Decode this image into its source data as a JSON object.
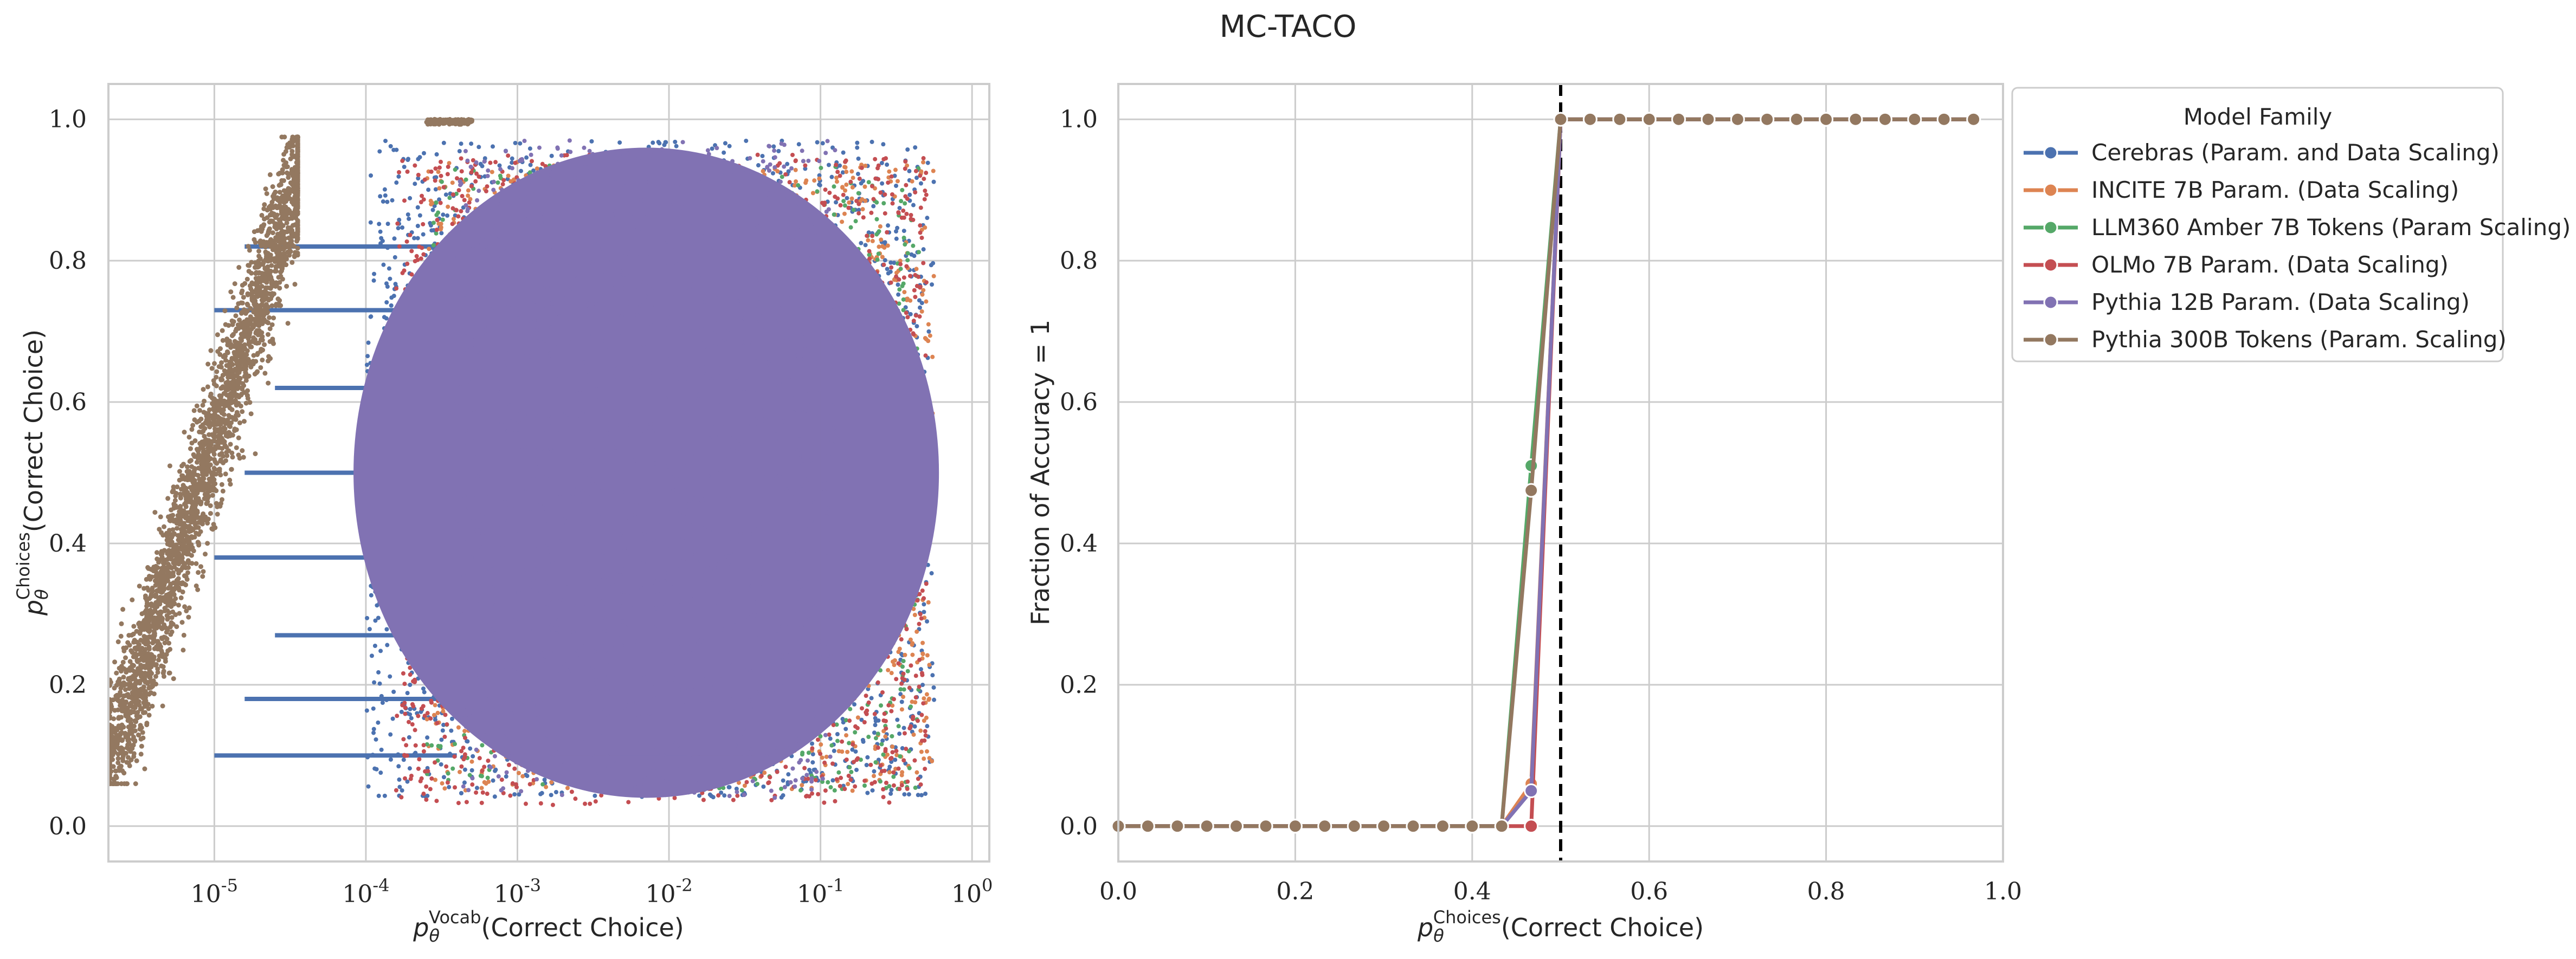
{
  "figure": {
    "title": "MC-TACO"
  },
  "chart_data": [
    {
      "type": "scatter",
      "xlabel_prefix": "p",
      "xlabel_sub": "θ",
      "xlabel_sup": "Vocab",
      "xlabel_rest": "(Correct Choice)",
      "ylabel_prefix": "p",
      "ylabel_sub": "θ",
      "ylabel_sup": "Choices",
      "ylabel_rest": "(Correct Choice)",
      "xscale": "log",
      "xlim": [
        2e-06,
        1.3
      ],
      "ylim": [
        -0.05,
        1.05
      ],
      "x_ticks": [
        "10^-5",
        "10^-4",
        "10^-3",
        "10^-2",
        "10^-1",
        "10^0"
      ],
      "y_ticks": [
        "0.0",
        "0.2",
        "0.4",
        "0.6",
        "0.8",
        "1.0"
      ],
      "grid": true,
      "series": [
        {
          "name": "Cerebras (Param. and Data Scaling)",
          "color": "#4c72b0",
          "clusters": [
            {
              "x_range": [
                0.0001,
                0.6
              ],
              "y_range": [
                0.03,
                0.98
              ],
              "note": "dense cloud"
            },
            {
              "x_range": [
                1e-05,
                0.0001
              ],
              "y_levels": [
                0.1,
                0.18,
                0.27,
                0.38,
                0.5,
                0.62,
                0.73,
                0.82
              ],
              "note": "horizontal streaks"
            }
          ]
        },
        {
          "name": "INCITE 7B Param. (Data Scaling)",
          "color": "#dd8452",
          "clusters": [
            {
              "x_range": [
                0.0002,
                0.6
              ],
              "y_range": [
                0.05,
                0.95
              ]
            }
          ]
        },
        {
          "name": "LLM360 Amber 7B Tokens (Param Scaling)",
          "color": "#55a868",
          "clusters": [
            {
              "x_range": [
                0.0002,
                0.5
              ],
              "y_range": [
                0.05,
                0.95
              ]
            }
          ]
        },
        {
          "name": "OLMo 7B Param. (Data Scaling)",
          "color": "#c44e52",
          "clusters": [
            {
              "x_range": [
                0.00015,
                0.5
              ],
              "y_range": [
                0.03,
                0.95
              ]
            }
          ]
        },
        {
          "name": "Pythia 12B Param. (Data Scaling)",
          "color": "#8172b3",
          "clusters": [
            {
              "x_range": [
                0.0003,
                0.15
              ],
              "y_range": [
                0.05,
                0.95
              ],
              "note": "dominant dense cloud"
            }
          ]
        },
        {
          "name": "Pythia 300B Tokens (Param. Scaling)",
          "color": "#937860",
          "clusters": [
            {
              "x_range": [
                2e-06,
                3e-05
              ],
              "y_range": [
                0.07,
                0.97
              ],
              "note": "diagonal band"
            },
            {
              "x_range": [
                0.00025,
                0.0005
              ],
              "y_range": [
                0.99,
                1.0
              ]
            }
          ]
        }
      ]
    },
    {
      "type": "line",
      "xlabel_prefix": "p",
      "xlabel_sub": "θ",
      "xlabel_sup": "Choices",
      "xlabel_rest": "(Correct Choice)",
      "ylabel": "Fraction of Accuracy = 1",
      "xlim": [
        0,
        1
      ],
      "ylim": [
        -0.05,
        1.05
      ],
      "x_ticks": [
        "0.0",
        "0.2",
        "0.4",
        "0.6",
        "0.8",
        "1.0"
      ],
      "y_ticks": [
        "0.0",
        "0.2",
        "0.4",
        "0.6",
        "0.8",
        "1.0"
      ],
      "grid": true,
      "vline_x": 0.5,
      "legend": {
        "title": "Model Family",
        "placement": "outside right, top"
      },
      "x": [
        0.0,
        0.0333,
        0.0667,
        0.1,
        0.1333,
        0.1667,
        0.2,
        0.2333,
        0.2667,
        0.3,
        0.3333,
        0.3667,
        0.4,
        0.4333,
        0.4667,
        0.5,
        0.5333,
        0.5667,
        0.6,
        0.6333,
        0.6667,
        0.7,
        0.7333,
        0.7667,
        0.8,
        0.8333,
        0.8667,
        0.9,
        0.9333,
        0.9667
      ],
      "series": [
        {
          "name": "Cerebras (Param. and Data Scaling)",
          "color": "#4c72b0",
          "values": [
            0,
            0,
            0,
            0,
            0,
            0,
            0,
            0,
            0,
            0,
            0,
            0,
            0,
            0,
            0.05,
            1,
            1,
            1,
            1,
            1,
            1,
            1,
            1,
            1,
            1,
            1,
            1,
            1,
            1,
            1
          ]
        },
        {
          "name": "INCITE 7B Param. (Data Scaling)",
          "color": "#dd8452",
          "values": [
            0,
            0,
            0,
            0,
            0,
            0,
            0,
            0,
            0,
            0,
            0,
            0,
            0,
            0,
            0.06,
            1,
            1,
            1,
            1,
            1,
            1,
            1,
            1,
            1,
            1,
            1,
            1,
            1,
            1,
            1
          ]
        },
        {
          "name": "LLM360 Amber 7B Tokens (Param Scaling)",
          "color": "#55a868",
          "values": [
            0,
            0,
            0,
            0,
            0,
            0,
            0,
            0,
            0,
            0,
            0,
            0,
            0,
            0,
            0.51,
            1,
            1,
            1,
            1,
            1,
            1,
            1,
            1,
            1,
            1,
            1,
            1,
            1,
            1,
            1
          ]
        },
        {
          "name": "OLMo 7B Param. (Data Scaling)",
          "color": "#c44e52",
          "values": [
            0,
            0,
            0,
            0,
            0,
            0,
            0,
            0,
            0,
            0,
            0,
            0,
            0,
            0,
            0.0,
            1,
            1,
            1,
            1,
            1,
            1,
            1,
            1,
            1,
            1,
            1,
            1,
            1,
            1,
            1
          ]
        },
        {
          "name": "Pythia 12B Param. (Data Scaling)",
          "color": "#8172b3",
          "values": [
            0,
            0,
            0,
            0,
            0,
            0,
            0,
            0,
            0,
            0,
            0,
            0,
            0,
            0,
            0.05,
            1,
            1,
            1,
            1,
            1,
            1,
            1,
            1,
            1,
            1,
            1,
            1,
            1,
            1,
            1
          ]
        },
        {
          "name": "Pythia 300B Tokens (Param. Scaling)",
          "color": "#937860",
          "values": [
            0,
            0,
            0,
            0,
            0,
            0,
            0,
            0,
            0,
            0,
            0,
            0,
            0,
            0,
            0.475,
            1,
            1,
            1,
            1,
            1,
            1,
            1,
            1,
            1,
            1,
            1,
            1,
            1,
            1,
            1
          ]
        }
      ]
    }
  ]
}
